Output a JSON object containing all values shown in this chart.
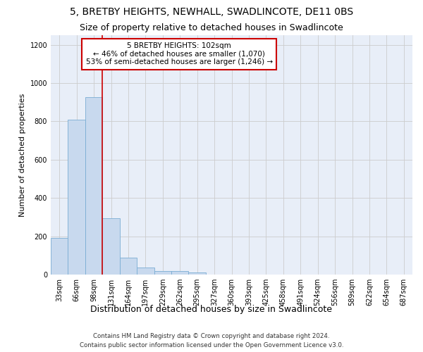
{
  "title": "5, BRETBY HEIGHTS, NEWHALL, SWADLINCOTE, DE11 0BS",
  "subtitle": "Size of property relative to detached houses in Swadlincote",
  "xlabel": "Distribution of detached houses by size in Swadlincote",
  "ylabel": "Number of detached properties",
  "bar_color": "#c8d9ee",
  "bar_edge_color": "#7aadd4",
  "categories": [
    "33sqm",
    "66sqm",
    "98sqm",
    "131sqm",
    "164sqm",
    "197sqm",
    "229sqm",
    "262sqm",
    "295sqm",
    "327sqm",
    "360sqm",
    "393sqm",
    "425sqm",
    "458sqm",
    "491sqm",
    "524sqm",
    "556sqm",
    "589sqm",
    "622sqm",
    "654sqm",
    "687sqm"
  ],
  "values": [
    193,
    810,
    925,
    295,
    88,
    35,
    20,
    17,
    12,
    0,
    0,
    0,
    0,
    0,
    0,
    0,
    0,
    0,
    0,
    0,
    0
  ],
  "ylim": [
    0,
    1250
  ],
  "yticks": [
    0,
    200,
    400,
    600,
    800,
    1000,
    1200
  ],
  "annotation_text": "5 BRETBY HEIGHTS: 102sqm\n← 46% of detached houses are smaller (1,070)\n53% of semi-detached houses are larger (1,246) →",
  "annotation_box_color": "#ffffff",
  "annotation_box_edge_color": "#cc0000",
  "footnote1": "Contains HM Land Registry data © Crown copyright and database right 2024.",
  "footnote2": "Contains public sector information licensed under the Open Government Licence v3.0.",
  "grid_color": "#cccccc",
  "background_color": "#e8eef8",
  "fig_background": "#ffffff",
  "title_fontsize": 10,
  "subtitle_fontsize": 9,
  "tick_fontsize": 7,
  "ylabel_fontsize": 8,
  "xlabel_fontsize": 9,
  "annotation_fontsize": 7.5
}
